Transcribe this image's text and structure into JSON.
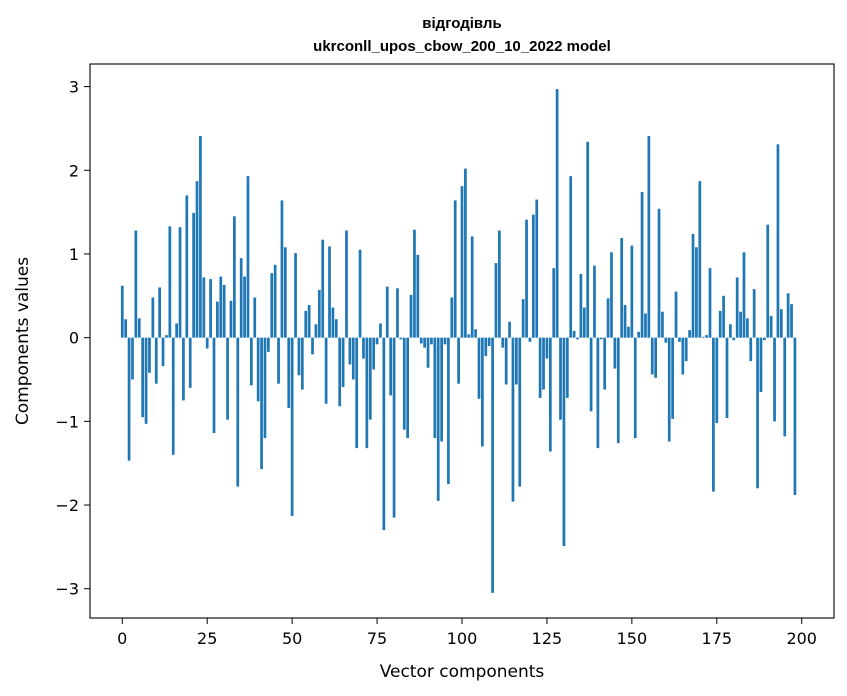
{
  "chart_data": {
    "type": "bar",
    "title": "відгодівль",
    "subtitle": "ukrconll_upos_cbow_200_10_2022 model",
    "xlabel": "Vector components",
    "ylabel": "Components values",
    "xlim": [
      -9.5,
      209.5
    ],
    "ylim": [
      -3.35,
      3.27
    ],
    "xticks": [
      0,
      25,
      50,
      75,
      100,
      125,
      150,
      175,
      200
    ],
    "xtick_labels": [
      "0",
      "25",
      "50",
      "75",
      "100",
      "125",
      "150",
      "175",
      "200"
    ],
    "yticks": [
      -3,
      -2,
      -1,
      0,
      1,
      2,
      3
    ],
    "ytick_labels": [
      "−3",
      "−2",
      "−1",
      "0",
      "1",
      "2",
      "3"
    ],
    "grid": false,
    "bar_color": "#1f77b4",
    "values": [
      0.62,
      0.22,
      -1.47,
      -0.5,
      1.28,
      0.23,
      -0.95,
      -1.03,
      -0.42,
      0.48,
      -0.55,
      0.6,
      -0.34,
      0.03,
      1.33,
      -1.4,
      0.17,
      1.32,
      -0.75,
      1.7,
      -0.6,
      1.49,
      1.87,
      2.41,
      0.72,
      -0.13,
      0.7,
      -1.14,
      0.43,
      0.73,
      0.63,
      -0.98,
      0.44,
      1.45,
      -1.78,
      0.95,
      0.73,
      1.93,
      -0.57,
      0.48,
      -0.76,
      -1.57,
      -1.2,
      -0.17,
      0.77,
      0.87,
      -0.55,
      1.64,
      1.08,
      -0.84,
      -2.13,
      1.01,
      -0.45,
      -0.62,
      0.32,
      0.39,
      -0.2,
      0.16,
      0.57,
      1.17,
      -0.79,
      1.09,
      0.36,
      0.22,
      -0.82,
      -0.59,
      1.28,
      -0.32,
      -0.5,
      -1.32,
      1.05,
      -0.25,
      -1.32,
      -0.98,
      -0.38,
      -0.08,
      0.17,
      -2.3,
      0.61,
      -0.69,
      -2.15,
      0.59,
      -0.02,
      -1.1,
      -1.2,
      0.51,
      1.29,
      0.99,
      -0.07,
      -0.12,
      -0.36,
      -0.08,
      -1.2,
      -1.95,
      -1.24,
      -0.08,
      -1.75,
      0.48,
      1.64,
      -0.55,
      1.81,
      2.02,
      0.04,
      1.21,
      0.1,
      -0.73,
      -1.3,
      -0.22,
      -0.1,
      -3.05,
      0.89,
      1.28,
      -0.12,
      -0.56,
      0.19,
      -1.96,
      -0.56,
      -1.78,
      0.46,
      1.41,
      -0.05,
      1.47,
      1.65,
      -0.72,
      -0.62,
      -0.25,
      -1.36,
      0.83,
      2.97,
      -0.98,
      -2.49,
      -0.72,
      1.93,
      0.08,
      -0.02,
      0.76,
      0.36,
      2.34,
      -0.88,
      0.86,
      -1.32,
      -0.02,
      -0.62,
      0.47,
      1.02,
      -0.37,
      -1.26,
      1.19,
      0.39,
      0.13,
      1.1,
      -1.2,
      0.07,
      1.74,
      0.29,
      2.41,
      -0.44,
      -0.48,
      1.54,
      0.31,
      -0.06,
      -1.24,
      -0.97,
      0.55,
      -0.05,
      -0.44,
      -0.28,
      0.09,
      1.24,
      1.08,
      1.87,
      0.01,
      0.03,
      0.83,
      -1.84,
      -1.02,
      0.32,
      0.5,
      -0.96,
      0.16,
      -0.03,
      0.72,
      0.31,
      1.02,
      0.23,
      -0.28,
      0.58,
      -1.8,
      -0.65,
      -0.03,
      1.35,
      0.26,
      -1.0,
      2.31,
      0.34,
      -1.18,
      0.53,
      0.4,
      -1.88
    ]
  }
}
